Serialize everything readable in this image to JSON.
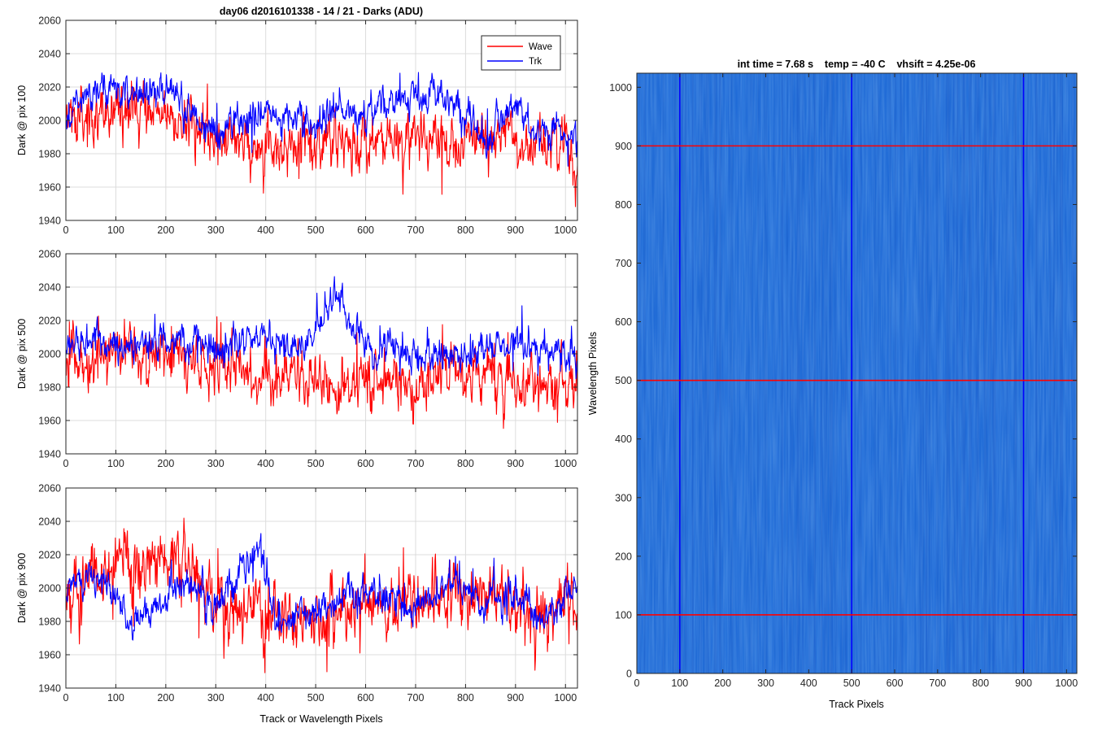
{
  "figure": {
    "title": "day06 d2016101338 - 14 / 21 - Darks (ADU)",
    "colors": {
      "wave": "#ff0000",
      "trk": "#0000ff",
      "grid": "#dcdcdc",
      "axis": "#262626",
      "image_base": "#1f6ad6",
      "image_dark": "#1e58c4"
    }
  },
  "chart_data": [
    {
      "type": "line",
      "title": "",
      "xlabel": "",
      "ylabel": "Dark @ pix 100",
      "xlim": [
        0,
        1024
      ],
      "ylim": [
        1940,
        2060
      ],
      "xticks": [
        "0",
        "100",
        "200",
        "300",
        "400",
        "500",
        "600",
        "700",
        "800",
        "900",
        "1000"
      ],
      "yticks": [
        "1940",
        "1960",
        "1980",
        "2000",
        "2020",
        "2040",
        "2060"
      ],
      "grid": true,
      "legend": {
        "position": "top-right",
        "entries": [
          "Wave",
          "Trk"
        ]
      },
      "series": [
        {
          "name": "Wave",
          "color": "#ff0000",
          "mean": 1992,
          "noise": 11,
          "points": 1024,
          "anchors": [
            [
              0,
              1998
            ],
            [
              100,
              2008
            ],
            [
              200,
              2004
            ],
            [
              300,
              1988
            ],
            [
              400,
              1984
            ],
            [
              500,
              1983
            ],
            [
              600,
              1989
            ],
            [
              700,
              1988
            ],
            [
              800,
              1990
            ],
            [
              900,
              1987
            ],
            [
              1000,
              1983
            ],
            [
              1024,
              1975
            ]
          ]
        },
        {
          "name": "Trk",
          "color": "#0000ff",
          "mean": 2000,
          "noise": 7,
          "points": 1024,
          "anchors": [
            [
              0,
              2000
            ],
            [
              60,
              2018
            ],
            [
              100,
              2018
            ],
            [
              150,
              2015
            ],
            [
              200,
              2022
            ],
            [
              250,
              2004
            ],
            [
              300,
              1990
            ],
            [
              400,
              2005
            ],
            [
              500,
              1994
            ],
            [
              550,
              2008
            ],
            [
              600,
              2000
            ],
            [
              650,
              2012
            ],
            [
              700,
              2017
            ],
            [
              770,
              2012
            ],
            [
              800,
              2000
            ],
            [
              850,
              1990
            ],
            [
              900,
              2010
            ],
            [
              950,
              1990
            ],
            [
              1024,
              1992
            ]
          ]
        }
      ]
    },
    {
      "type": "line",
      "title": "",
      "xlabel": "",
      "ylabel": "Dark @ pix 500",
      "xlim": [
        0,
        1024
      ],
      "ylim": [
        1940,
        2060
      ],
      "xticks": [
        "0",
        "100",
        "200",
        "300",
        "400",
        "500",
        "600",
        "700",
        "800",
        "900",
        "1000"
      ],
      "yticks": [
        "1940",
        "1960",
        "1980",
        "2000",
        "2020",
        "2040",
        "2060"
      ],
      "grid": true,
      "series": [
        {
          "name": "Wave",
          "color": "#ff0000",
          "mean": 1990,
          "noise": 11,
          "points": 1024,
          "anchors": [
            [
              0,
              1993
            ],
            [
              100,
              2000
            ],
            [
              200,
              1996
            ],
            [
              300,
              1992
            ],
            [
              400,
              1988
            ],
            [
              500,
              1984
            ],
            [
              600,
              1983
            ],
            [
              700,
              1984
            ],
            [
              800,
              1987
            ],
            [
              900,
              1985
            ],
            [
              1024,
              1982
            ]
          ]
        },
        {
          "name": "Trk",
          "color": "#0000ff",
          "mean": 2003,
          "noise": 7,
          "points": 1024,
          "anchors": [
            [
              0,
              2005
            ],
            [
              100,
              2005
            ],
            [
              200,
              2008
            ],
            [
              300,
              2005
            ],
            [
              380,
              2012
            ],
            [
              420,
              2010
            ],
            [
              480,
              2005
            ],
            [
              520,
              2025
            ],
            [
              545,
              2038
            ],
            [
              570,
              2020
            ],
            [
              600,
              2005
            ],
            [
              700,
              2000
            ],
            [
              800,
              1997
            ],
            [
              850,
              2005
            ],
            [
              900,
              2005
            ],
            [
              1024,
              1997
            ]
          ]
        }
      ]
    },
    {
      "type": "line",
      "title": "",
      "xlabel": "Track or Wavelength Pixels",
      "ylabel": "Dark @ pix 900",
      "xlim": [
        0,
        1024
      ],
      "ylim": [
        1940,
        2060
      ],
      "xticks": [
        "0",
        "100",
        "200",
        "300",
        "400",
        "500",
        "600",
        "700",
        "800",
        "900",
        "1000"
      ],
      "yticks": [
        "1940",
        "1960",
        "1980",
        "2000",
        "2020",
        "2040",
        "2060"
      ],
      "grid": true,
      "series": [
        {
          "name": "Wave",
          "color": "#ff0000",
          "mean": 1994,
          "noise": 13,
          "points": 1024,
          "anchors": [
            [
              0,
              1995
            ],
            [
              100,
              2012
            ],
            [
              150,
              2015
            ],
            [
              220,
              2015
            ],
            [
              300,
              1992
            ],
            [
              400,
              1985
            ],
            [
              500,
              1985
            ],
            [
              600,
              1990
            ],
            [
              700,
              1990
            ],
            [
              800,
              1993
            ],
            [
              900,
              1990
            ],
            [
              1024,
              1988
            ]
          ]
        },
        {
          "name": "Trk",
          "color": "#0000ff",
          "mean": 1995,
          "noise": 7,
          "points": 1024,
          "anchors": [
            [
              0,
              2000
            ],
            [
              80,
              2005
            ],
            [
              130,
              1978
            ],
            [
              200,
              1992
            ],
            [
              230,
              2005
            ],
            [
              300,
              1990
            ],
            [
              390,
              2025
            ],
            [
              420,
              1980
            ],
            [
              500,
              1985
            ],
            [
              560,
              1995
            ],
            [
              620,
              1998
            ],
            [
              700,
              1988
            ],
            [
              780,
              2003
            ],
            [
              830,
              1990
            ],
            [
              900,
              1995
            ],
            [
              960,
              1980
            ],
            [
              1024,
              2000
            ]
          ]
        }
      ]
    },
    {
      "type": "heatmap",
      "title": "int time = 7.68 s    temp = -40 C    vhsift = 4.25e-06",
      "xlabel": "Track Pixels",
      "ylabel": "Wavelength Pixels",
      "xlim": [
        0,
        1024
      ],
      "ylim": [
        0,
        1024
      ],
      "xticks": [
        "0",
        "100",
        "200",
        "300",
        "400",
        "500",
        "600",
        "700",
        "800",
        "900",
        "1000"
      ],
      "yticks": [
        "0",
        "100",
        "200",
        "300",
        "400",
        "500",
        "600",
        "700",
        "800",
        "900",
        "1000"
      ],
      "vertical_lines": {
        "x": [
          100,
          500,
          900
        ],
        "color": "#0000ff"
      },
      "horizontal_lines": {
        "y": [
          100,
          500,
          900
        ],
        "color": "#ff0000"
      }
    }
  ]
}
